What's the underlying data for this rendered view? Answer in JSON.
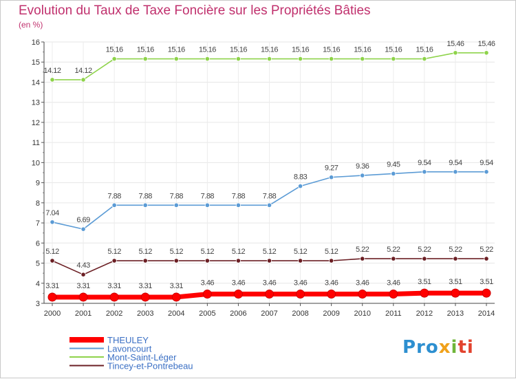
{
  "chart_data": {
    "type": "line",
    "title": "Evolution du Taux de Taxe Foncière sur les Propriétés Bâties",
    "ylabel": "(en %)",
    "xlabel": "",
    "ylim": [
      3,
      16
    ],
    "yticks": [
      "3",
      "4",
      "5",
      "6",
      "7",
      "8",
      "9",
      "10",
      "11",
      "12",
      "13",
      "14",
      "15",
      "16"
    ],
    "categories": [
      "2000",
      "2001",
      "2002",
      "2003",
      "2004",
      "2005",
      "2006",
      "2007",
      "2008",
      "2009",
      "2010",
      "2011",
      "2012",
      "2013",
      "2014"
    ],
    "grid": true,
    "series": [
      {
        "name": "THEULEY",
        "color": "#ff0000",
        "values": [
          3.31,
          3.31,
          3.31,
          3.31,
          3.31,
          3.46,
          3.46,
          3.46,
          3.46,
          3.46,
          3.46,
          3.46,
          3.51,
          3.51,
          3.51
        ],
        "labels": [
          "3.31",
          "3.31",
          "3.31",
          "3.31",
          "3.31",
          "3.46",
          "3.46",
          "3.46",
          "3.46",
          "3.46",
          "3.46",
          "3.46",
          "3.51",
          "3.51",
          "3.51"
        ]
      },
      {
        "name": "Lavoncourt",
        "color": "#5b9bd5",
        "values": [
          7.04,
          6.69,
          7.88,
          7.88,
          7.88,
          7.88,
          7.88,
          7.88,
          8.83,
          9.27,
          9.36,
          9.45,
          9.54,
          9.54,
          9.54
        ],
        "labels": [
          "7.04",
          "6.69",
          "7.88",
          "7.88",
          "7.88",
          "7.88",
          "7.88",
          "7.88",
          "8.83",
          "9.27",
          "9.36",
          "9.45",
          "9.54",
          "9.54",
          "9.54"
        ]
      },
      {
        "name": "Mont-Saint-Léger",
        "color": "#8ed34a",
        "values": [
          14.12,
          14.12,
          15.16,
          15.16,
          15.16,
          15.16,
          15.16,
          15.16,
          15.16,
          15.16,
          15.16,
          15.16,
          15.16,
          15.46,
          15.46
        ],
        "labels": [
          "14.12",
          "14.12",
          "15.16",
          "15.16",
          "15.16",
          "15.16",
          "15.16",
          "15.16",
          "15.16",
          "15.16",
          "15.16",
          "15.16",
          "15.16",
          "15.46",
          "15.46"
        ]
      },
      {
        "name": "Tincey-et-Pontrebeau",
        "color": "#6b1f24",
        "values": [
          5.12,
          4.43,
          5.12,
          5.12,
          5.12,
          5.12,
          5.12,
          5.12,
          5.12,
          5.12,
          5.22,
          5.22,
          5.22,
          5.22,
          5.22
        ],
        "labels": [
          "5.12",
          "4.43",
          "5.12",
          "5.12",
          "5.12",
          "5.12",
          "5.12",
          "5.12",
          "5.12",
          "5.12",
          "5.22",
          "5.22",
          "5.22",
          "5.22",
          "5.22"
        ]
      }
    ]
  },
  "branding": {
    "logo_parts": [
      "Pro",
      "x",
      "i",
      "ti"
    ]
  }
}
